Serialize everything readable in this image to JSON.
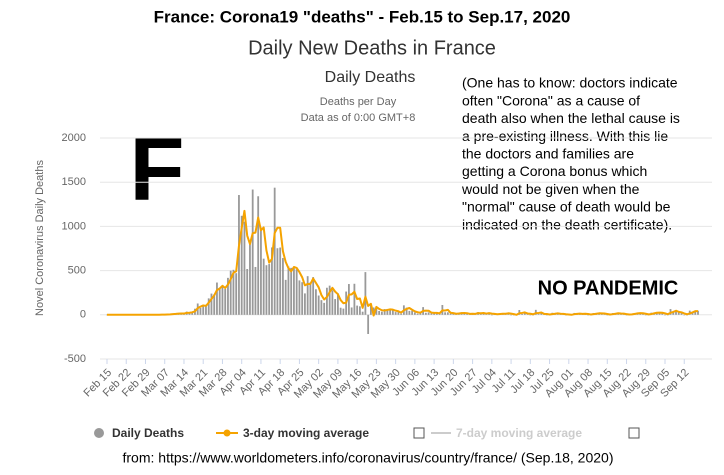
{
  "chart_data": {
    "type": "bar",
    "header": "France: Corona19 \"deaths\" - Feb.15 to Sep.17, 2020",
    "title": "Daily New Deaths in France",
    "chart_title": "Daily Deaths",
    "subtitle_lines": [
      "Deaths per Day",
      "Data as of 0:00 GMT+8"
    ],
    "big_letter": "F",
    "annotation_lines": [
      "(One has to know: doctors indicate",
      "often \"Corona\" as a cause of",
      "death also when the lethal cause is",
      "a pre-existing illness. With this lie",
      "the doctors and families are",
      "getting a Corona bonus which",
      "would not be given when the",
      "\"normal\" cause of death would be",
      "indicated on the death certificate)."
    ],
    "callout": "NO PANDEMIC",
    "source": "from: https://www.worldometers.info/coronavirus/country/france/  (Sep.18, 2020)",
    "ylabel": "Novel Coronavirus Daily Deaths",
    "ylim": [
      -500,
      2000
    ],
    "yticks": [
      -500,
      0,
      500,
      1000,
      1500,
      2000
    ],
    "grid": true,
    "categories": [
      "Feb 15",
      null,
      null,
      null,
      null,
      null,
      null,
      "Feb 22",
      null,
      null,
      null,
      null,
      null,
      null,
      "Feb 29",
      null,
      null,
      null,
      null,
      null,
      null,
      "Mar 07",
      null,
      null,
      null,
      null,
      null,
      null,
      "Mar 14",
      null,
      null,
      null,
      null,
      null,
      null,
      "Mar 21",
      null,
      null,
      null,
      null,
      null,
      null,
      "Mar 28",
      null,
      null,
      null,
      null,
      null,
      null,
      "Apr 04",
      null,
      null,
      null,
      null,
      null,
      null,
      "Apr 11",
      null,
      null,
      null,
      null,
      null,
      null,
      "Apr 18",
      null,
      null,
      null,
      null,
      null,
      null,
      "Apr 25",
      null,
      null,
      null,
      null,
      null,
      null,
      "May 02",
      null,
      null,
      null,
      null,
      null,
      null,
      "May 09",
      null,
      null,
      null,
      null,
      null,
      null,
      "May 16",
      null,
      null,
      null,
      null,
      null,
      null,
      "May 23",
      null,
      null,
      null,
      null,
      null,
      null,
      "May 30",
      null,
      null,
      null,
      null,
      null,
      null,
      "Jun 06",
      null,
      null,
      null,
      null,
      null,
      null,
      "Jun 13",
      null,
      null,
      null,
      null,
      null,
      null,
      "Jun 20",
      null,
      null,
      null,
      null,
      null,
      null,
      "Jun 27",
      null,
      null,
      null,
      null,
      null,
      null,
      "Jul 04",
      null,
      null,
      null,
      null,
      null,
      null,
      "Jul 11",
      null,
      null,
      null,
      null,
      null,
      null,
      "Jul 18",
      null,
      null,
      null,
      null,
      null,
      null,
      "Jul 25",
      null,
      null,
      null,
      null,
      null,
      null,
      "Aug 01",
      null,
      null,
      null,
      null,
      null,
      null,
      "Aug 08",
      null,
      null,
      null,
      null,
      null,
      null,
      "Aug 15",
      null,
      null,
      null,
      null,
      null,
      null,
      "Aug 22",
      null,
      null,
      null,
      null,
      null,
      null,
      "Aug 29",
      null,
      null,
      null,
      null,
      null,
      null,
      "Sep 05",
      null,
      null,
      null,
      null,
      null,
      null,
      "Sep 12",
      null,
      null,
      null,
      null,
      null
    ],
    "series": [
      {
        "name": "Daily Deaths",
        "color": "#999999",
        "values": [
          1,
          0,
          0,
          0,
          0,
          0,
          0,
          0,
          0,
          0,
          1,
          0,
          0,
          0,
          1,
          0,
          1,
          1,
          0,
          2,
          3,
          2,
          8,
          6,
          10,
          15,
          13,
          18,
          12,
          36,
          21,
          27,
          69,
          128,
          78,
          112,
          112,
          186,
          240,
          231,
          365,
          299,
          319,
          292,
          418,
          499,
          509,
          471,
          1355,
          1120,
          1053,
          518,
          833,
          1417,
          541,
          1341,
          987,
          635,
          561,
          574,
          762,
          1438,
          753,
          761,
          642,
          395,
          547,
          531,
          544,
          516,
          389,
          369,
          242,
          437,
          367,
          427,
          289,
          218,
          166,
          135,
          306,
          330,
          278,
          178,
          243,
          80,
          70,
          263,
          348,
          83,
          351,
          104,
          96,
          35,
          483,
          -217,
          110,
          83,
          74,
          43,
          35,
          65,
          66,
          52,
          57,
          31,
          31,
          13,
          107,
          81,
          44,
          46,
          27,
          13,
          31,
          87,
          23,
          28,
          24,
          14,
          29,
          9,
          111,
          28,
          28,
          14,
          15,
          6,
          23,
          29,
          12,
          14,
          7,
          15,
          11,
          30,
          11,
          18,
          14,
          25,
          0,
          4,
          14,
          9,
          12,
          14,
          25,
          0,
          0,
          0,
          54,
          10,
          17,
          18,
          0,
          0,
          56,
          8,
          15,
          11,
          0,
          0,
          23,
          14,
          14,
          8,
          11,
          0,
          0,
          0,
          21,
          9,
          9,
          15,
          12,
          0,
          0,
          20,
          15,
          17,
          17,
          10,
          0,
          0,
          20,
          17,
          16,
          11,
          13,
          0,
          0,
          15,
          16,
          18,
          23,
          14,
          0,
          0,
          24,
          25,
          20,
          29,
          20,
          0,
          0,
          65,
          32,
          40,
          26,
          19,
          0,
          0,
          47,
          34,
          43,
          46
        ]
      },
      {
        "name": "3-day moving average",
        "color": "#f5a300",
        "values": [
          0,
          0,
          0,
          0,
          0,
          0,
          0,
          0,
          0,
          0,
          0,
          0,
          0,
          0,
          0,
          0,
          1,
          1,
          1,
          1,
          2,
          2,
          4,
          5,
          8,
          10,
          13,
          15,
          14,
          22,
          23,
          28,
          39,
          75,
          92,
          106,
          101,
          137,
          179,
          219,
          279,
          298,
          328,
          303,
          343,
          403,
          475,
          493,
          778,
          982,
          1176,
          897,
          801,
          923,
          930,
          1100,
          956,
          988,
          728,
          590,
          632,
          925,
          984,
          984,
          719,
          599,
          528,
          491,
          541,
          530,
          483,
          425,
          333,
          349,
          349,
          410,
          361,
          311,
          224,
          173,
          202,
          257,
          305,
          262,
          233,
          167,
          131,
          138,
          227,
          231,
          261,
          179,
          184,
          78,
          205,
          100,
          125,
          -8,
          89,
          67,
          51,
          48,
          55,
          61,
          58,
          47,
          40,
          25,
          50,
          67,
          77,
          57,
          39,
          29,
          24,
          44,
          47,
          46,
          25,
          22,
          22,
          17,
          50,
          49,
          56,
          23,
          19,
          12,
          15,
          19,
          21,
          18,
          11,
          12,
          11,
          19,
          17,
          20,
          14,
          19,
          13,
          10,
          6,
          9,
          12,
          12,
          17,
          13,
          8,
          0,
          18,
          21,
          27,
          15,
          12,
          6,
          19,
          21,
          26,
          11,
          9,
          4,
          8,
          12,
          17,
          12,
          11,
          6,
          4,
          0,
          7,
          10,
          13,
          11,
          12,
          9,
          4,
          7,
          12,
          17,
          16,
          15,
          9,
          3,
          7,
          12,
          18,
          15,
          13,
          8,
          4,
          5,
          10,
          16,
          19,
          18,
          12,
          5,
          8,
          16,
          23,
          25,
          23,
          16,
          7,
          22,
          32,
          46,
          33,
          28,
          15,
          6,
          16,
          27,
          41,
          41
        ]
      }
    ],
    "hidden_series": [
      {
        "name": "7-day moving average",
        "color": "#cccccc"
      }
    ]
  }
}
